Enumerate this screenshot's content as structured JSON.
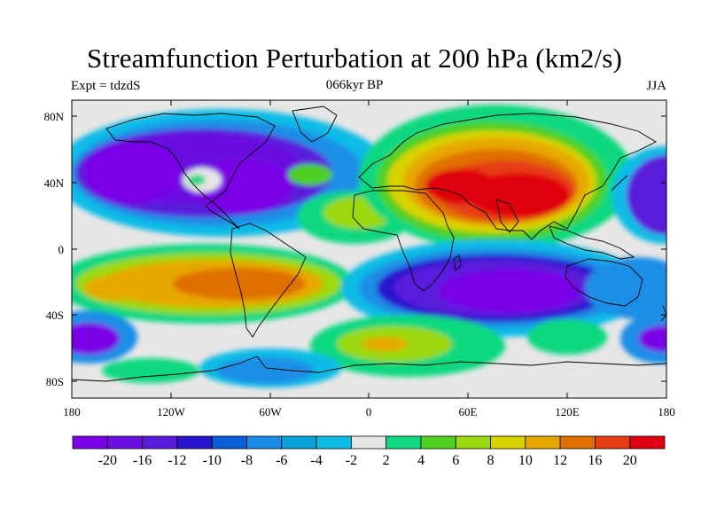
{
  "title": "Streamfunction Perturbation at 200 hPa (km2/s)",
  "subtitle_left": "Expt = tdzdS",
  "subtitle_center": "066kyr BP",
  "subtitle_right": "JJA",
  "lat_labels": [
    "80N",
    "40N",
    "0",
    "40S",
    "80S"
  ],
  "lon_labels": [
    "180",
    "120W",
    "60W",
    "0",
    "60E",
    "120E",
    "180"
  ],
  "colorbar": {
    "colors": [
      "#7a00e6",
      "#6b10e0",
      "#5a1cdc",
      "#2a14cf",
      "#0a5ed8",
      "#1a8ee6",
      "#0aa2dc",
      "#10bce6",
      "#e6e6e6",
      "#10d880",
      "#50d020",
      "#9cd810",
      "#d8d200",
      "#e6a800",
      "#e07000",
      "#e63c14",
      "#e00010"
    ],
    "labels": [
      "-20",
      "-16",
      "-12",
      "-10",
      "-8",
      "-6",
      "-4",
      "-2",
      "2",
      "4",
      "6",
      "8",
      "10",
      "12",
      "16",
      "20"
    ]
  }
}
